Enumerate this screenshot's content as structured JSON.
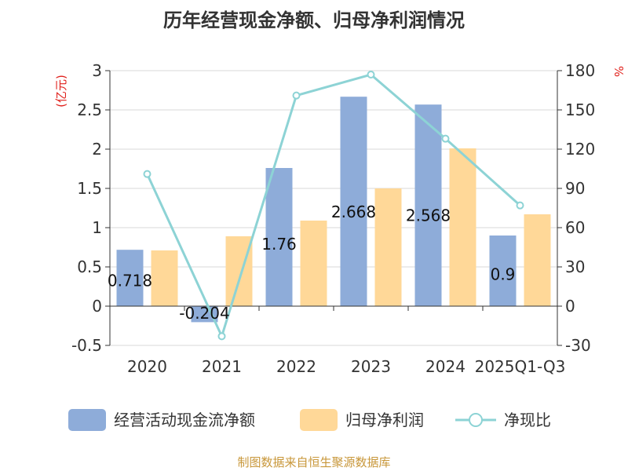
{
  "chart_data": {
    "type": "bar",
    "title": "历年经营现金净额、归母净利润情况",
    "categories": [
      "2020",
      "2021",
      "2022",
      "2023",
      "2024",
      "2025Q1-Q3"
    ],
    "series": [
      {
        "name": "经营活动现金流净额",
        "type": "bar",
        "axis": "left",
        "color": "#8eacd9",
        "values": [
          0.718,
          -0.204,
          1.76,
          2.668,
          2.568,
          0.9
        ],
        "labels": [
          "0.718",
          "-0.204",
          "1.76",
          "2.668",
          "2.568",
          "0.9"
        ]
      },
      {
        "name": "归母净利润",
        "type": "bar",
        "axis": "left",
        "color": "#ffd898",
        "values": [
          0.71,
          0.89,
          1.09,
          1.5,
          2.01,
          1.17
        ]
      },
      {
        "name": "净现比",
        "type": "line",
        "axis": "right",
        "color": "#8dd3d5",
        "values": [
          101,
          -23,
          161,
          177,
          128,
          77
        ]
      }
    ],
    "left_axis": {
      "label": "(亿元)",
      "min": -0.5,
      "max": 3,
      "ticks": [
        -0.5,
        0,
        0.5,
        1,
        1.5,
        2,
        2.5,
        3
      ],
      "tick_labels": [
        "-0.5",
        "0",
        "0.5",
        "1",
        "1.5",
        "2",
        "2.5",
        "3"
      ]
    },
    "right_axis": {
      "label": "%",
      "min": -30,
      "max": 180,
      "ticks": [
        -30,
        0,
        30,
        60,
        90,
        120,
        150,
        180
      ],
      "tick_labels": [
        "-30",
        "0",
        "30",
        "60",
        "90",
        "120",
        "150",
        "180"
      ]
    },
    "grid": true,
    "legend_position": "bottom"
  },
  "footer": {
    "source": "制图数据来自恒生聚源数据库"
  },
  "colors": {
    "title": "#333333",
    "axis_label_red": "#e0201b",
    "source": "#c8973a",
    "grid": "#d9d9d9",
    "tick_text": "#333333"
  }
}
